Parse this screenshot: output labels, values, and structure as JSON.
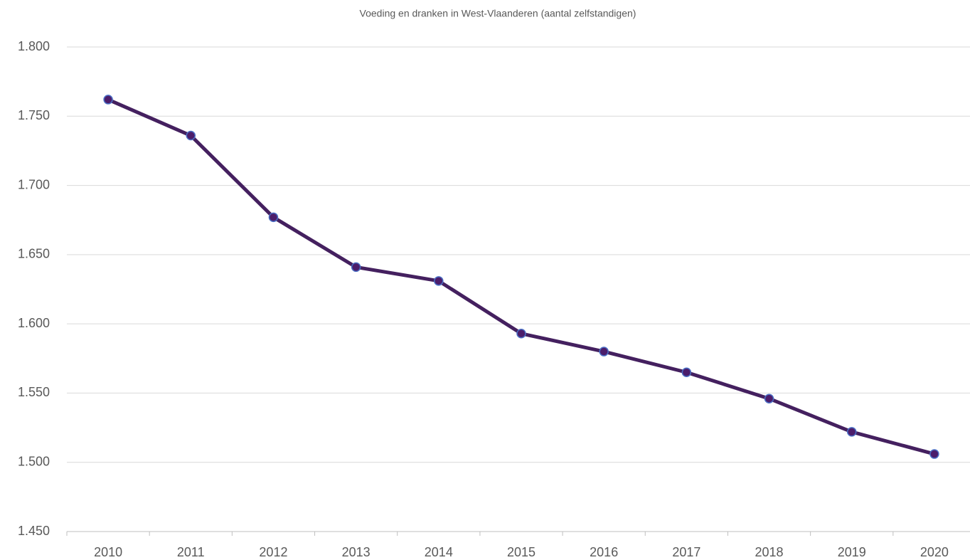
{
  "chart_data": {
    "type": "line",
    "title": "Voeding en dranken in West-Vlaanderen (aantal zelfstandigen)",
    "categories": [
      "2010",
      "2011",
      "2012",
      "2013",
      "2014",
      "2015",
      "2016",
      "2017",
      "2018",
      "2019",
      "2020"
    ],
    "values": [
      1762,
      1736,
      1677,
      1641,
      1631,
      1593,
      1580,
      1565,
      1546,
      1522,
      1506
    ],
    "color": "#44205f",
    "marker_fill": "#4b1d6b",
    "marker_edge": "#4a6ec4",
    "ylim": [
      1450,
      1800
    ],
    "yticks": [
      {
        "value": 1450,
        "label": "1.450"
      },
      {
        "value": 1500,
        "label": "1.500"
      },
      {
        "value": 1550,
        "label": "1.550"
      },
      {
        "value": 1600,
        "label": "1.600"
      },
      {
        "value": 1650,
        "label": "1.650"
      },
      {
        "value": 1700,
        "label": "1.700"
      },
      {
        "value": 1750,
        "label": "1.750"
      },
      {
        "value": 1800,
        "label": "1.800"
      }
    ],
    "grid": true
  }
}
